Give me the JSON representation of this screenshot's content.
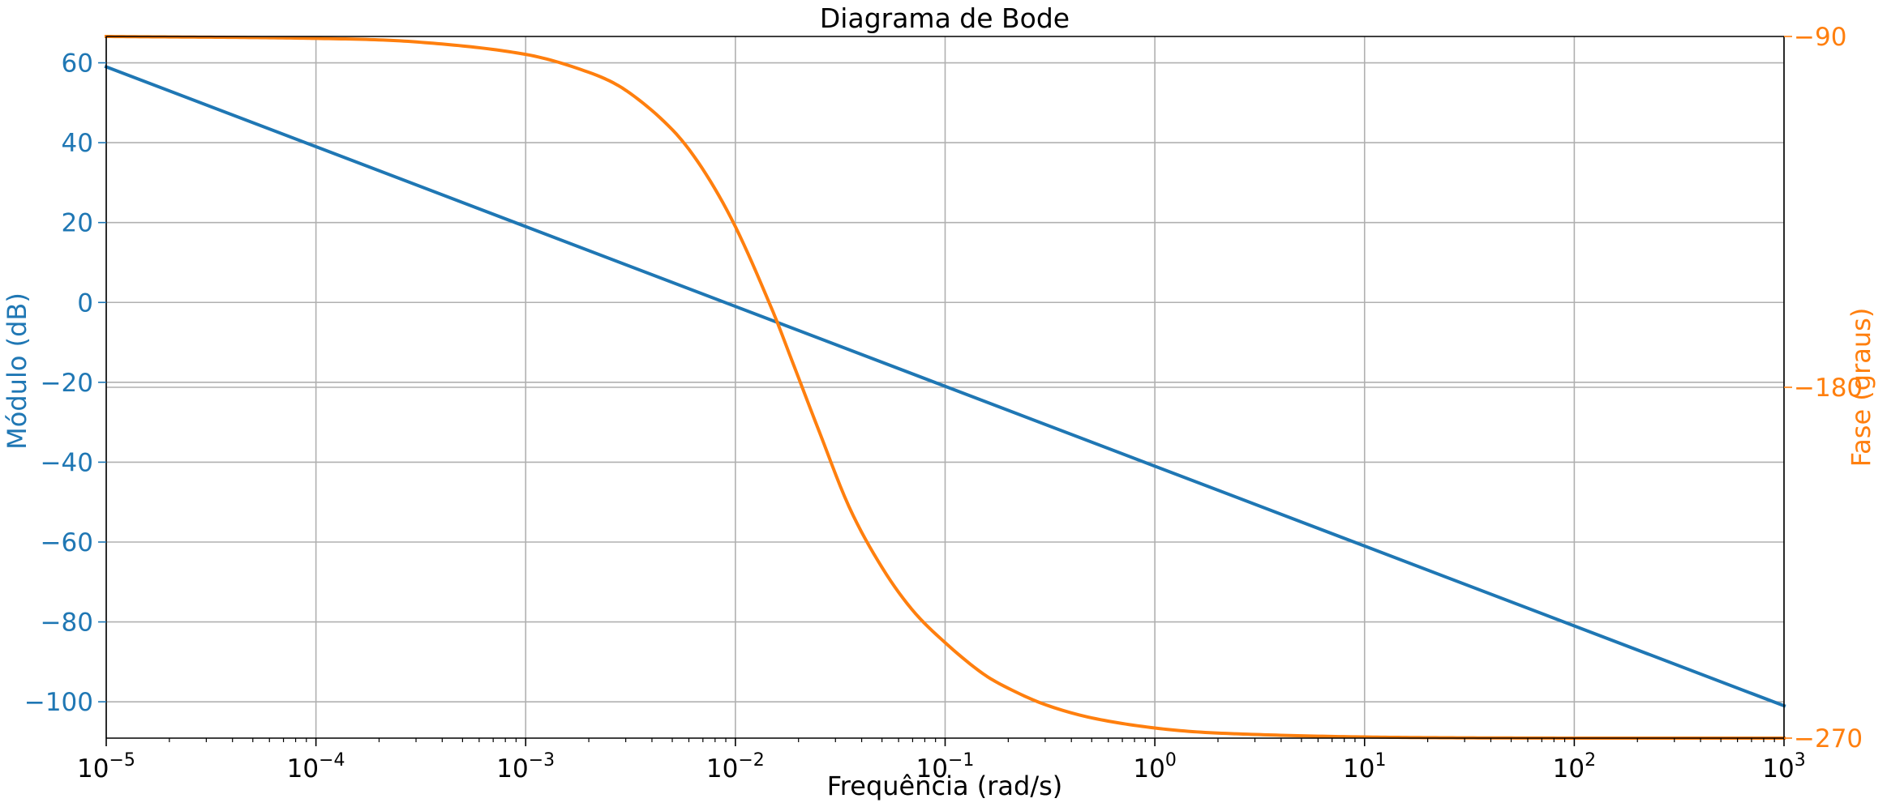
{
  "chart_data": {
    "type": "line",
    "title": "Diagrama de Bode",
    "xlabel": "Frequência (rad/s)",
    "ylabel_left": "Módulo (dB)",
    "ylabel_right": "Fase (graus)",
    "x_scale": "log",
    "xlim": [
      1e-05,
      1000
    ],
    "ylim_left": [
      -109.1,
      66.6
    ],
    "ylim_right": [
      -270,
      -90
    ],
    "grid": true,
    "x_ticks": [
      {
        "value": 1e-05,
        "base": "10",
        "exp": "−5"
      },
      {
        "value": 0.0001,
        "base": "10",
        "exp": "−4"
      },
      {
        "value": 0.001,
        "base": "10",
        "exp": "−3"
      },
      {
        "value": 0.01,
        "base": "10",
        "exp": "−2"
      },
      {
        "value": 0.1,
        "base": "10",
        "exp": "−1"
      },
      {
        "value": 1,
        "base": "10",
        "exp": "0"
      },
      {
        "value": 10,
        "base": "10",
        "exp": "1"
      },
      {
        "value": 100,
        "base": "10",
        "exp": "2"
      },
      {
        "value": 1000,
        "base": "10",
        "exp": "3"
      }
    ],
    "y_ticks_left": [
      {
        "value": 60,
        "label": "60"
      },
      {
        "value": 40,
        "label": "40"
      },
      {
        "value": 20,
        "label": "20"
      },
      {
        "value": 0,
        "label": "0"
      },
      {
        "value": -20,
        "label": "−20"
      },
      {
        "value": -40,
        "label": "−40"
      },
      {
        "value": -60,
        "label": "−60"
      },
      {
        "value": -80,
        "label": "−80"
      },
      {
        "value": -100,
        "label": "−100"
      }
    ],
    "y_ticks_right": [
      {
        "value": -90,
        "label": "−90"
      },
      {
        "value": -180,
        "label": "−180"
      },
      {
        "value": -270,
        "label": "−270"
      }
    ],
    "series": [
      {
        "axis": "left",
        "color": "#1f77b4",
        "x": [
          1e-05,
          0.0001,
          0.001,
          0.01,
          0.1,
          1,
          10,
          100,
          1000
        ],
        "y": [
          59,
          39,
          19,
          -1,
          -21,
          -41,
          -61,
          -81,
          -101
        ]
      },
      {
        "axis": "right",
        "color": "#ff7f0e",
        "x": [
          1e-05,
          0.0001,
          0.0003,
          0.001,
          0.002,
          0.003,
          0.005,
          0.007,
          0.01,
          0.015,
          0.0185,
          0.025,
          0.035,
          0.05,
          0.07,
          0.1,
          0.15,
          0.2,
          0.3,
          0.5,
          1,
          2,
          10,
          100,
          1000
        ],
        "y": [
          -90,
          -90.5,
          -91.4,
          -94.6,
          -99.2,
          -103.8,
          -113.9,
          -124.1,
          -138.8,
          -160.2,
          -172.8,
          -191.1,
          -210.9,
          -226.2,
          -237.2,
          -245.5,
          -253.3,
          -257.2,
          -261.4,
          -264.8,
          -267.4,
          -268.7,
          -269.7,
          -270,
          -270
        ]
      }
    ],
    "colors": {
      "left_axis": "#1f77b4",
      "right_axis": "#ff7f0e",
      "grid": "#b0b0b0",
      "axis": "#000000"
    }
  }
}
